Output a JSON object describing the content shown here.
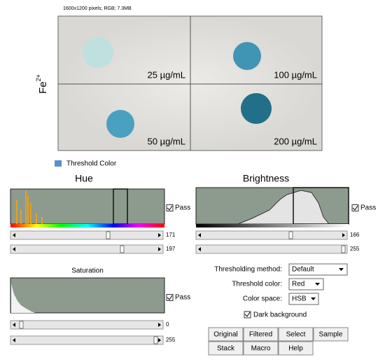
{
  "image_info": "1600x1200 pixels; RGB; 7.3MB",
  "side_label": {
    "base": "Fe",
    "superscript": "2+"
  },
  "panels": [
    {
      "label": "25 µg/mL"
    },
    {
      "label": "100 µg/mL"
    },
    {
      "label": "50 µg/mL"
    },
    {
      "label": "200 µg/mL"
    }
  ],
  "window_title": "Threshold Color",
  "hue": {
    "title": "Hue",
    "pass": "Pass",
    "slider_min": "171",
    "slider_max": "197"
  },
  "brightness": {
    "title": "Brightness",
    "pass": "Pass",
    "slider_min": "166",
    "slider_max": "255"
  },
  "saturation": {
    "title": "Saturation",
    "pass": "Pass",
    "slider_min": "0",
    "slider_max": "255"
  },
  "controls": {
    "method_label": "Thresholding method:",
    "method_value": "Default",
    "color_label": "Threshold color:",
    "color_value": "Red",
    "space_label": "Color space:",
    "space_value": "HSB",
    "dark_background": "Dark background"
  },
  "buttons": [
    "Original",
    "Filtered",
    "Select",
    "Sample",
    "Stack",
    "Macro",
    "Help"
  ]
}
